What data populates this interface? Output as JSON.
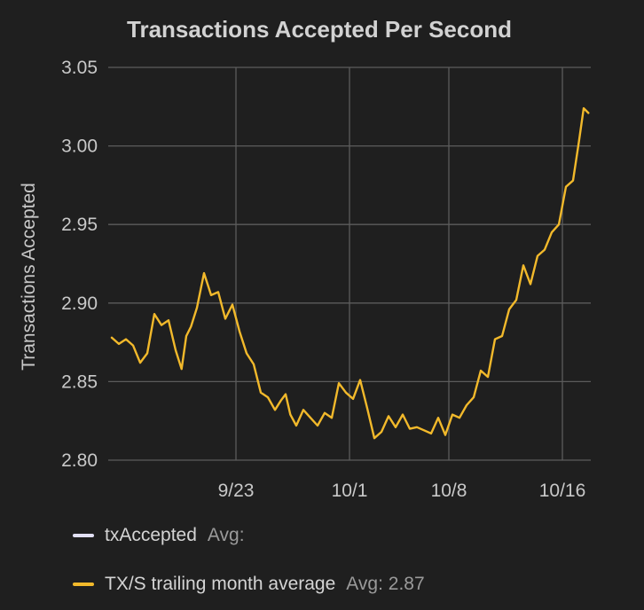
{
  "chart_data": {
    "type": "line",
    "title": "Transactions Accepted Per Second",
    "ylabel": "Transactions Accepted",
    "xlabel": "",
    "ylim": [
      2.8,
      3.05
    ],
    "yticks": [
      2.8,
      2.85,
      2.9,
      2.95,
      3.0,
      3.05
    ],
    "ytick_labels": [
      "2.80",
      "2.85",
      "2.90",
      "2.95",
      "3.00",
      "3.05"
    ],
    "xlim": [
      "2023-09-14",
      "2023-10-18"
    ],
    "xticks": [
      "2023-09-23",
      "2023-10-01",
      "2023-10-08",
      "2023-10-16"
    ],
    "xtick_labels": [
      "9/23",
      "10/1",
      "10/8",
      "10/16"
    ],
    "grid": true,
    "legend_position": "bottom-left",
    "series": [
      {
        "name": "txAccepted",
        "color": "#e2e0f5",
        "stat_label": "Avg:",
        "x": [],
        "y": []
      },
      {
        "name": "TX/S trailing month average",
        "color": "#f2b92b",
        "stat_label": "Avg: 2.87",
        "x": [
          "2023-09-14",
          "2023-09-14",
          "2023-09-15",
          "2023-09-15",
          "2023-09-16",
          "2023-09-16",
          "2023-09-17",
          "2023-09-17",
          "2023-09-18",
          "2023-09-18",
          "2023-09-19",
          "2023-09-19",
          "2023-09-19",
          "2023-09-20",
          "2023-09-20",
          "2023-09-21",
          "2023-09-21",
          "2023-09-22",
          "2023-09-22",
          "2023-09-23",
          "2023-09-23",
          "2023-09-24",
          "2023-09-24",
          "2023-09-25",
          "2023-09-25",
          "2023-09-26",
          "2023-09-26",
          "2023-09-26",
          "2023-09-27",
          "2023-09-27",
          "2023-09-28",
          "2023-09-28",
          "2023-09-29",
          "2023-09-29",
          "2023-09-30",
          "2023-09-30",
          "2023-10-01",
          "2023-10-01",
          "2023-10-02",
          "2023-10-02",
          "2023-10-03",
          "2023-10-03",
          "2023-10-04",
          "2023-10-04",
          "2023-10-05",
          "2023-10-05",
          "2023-10-06",
          "2023-10-06",
          "2023-10-07",
          "2023-10-07",
          "2023-10-08",
          "2023-10-08",
          "2023-10-09",
          "2023-10-09",
          "2023-10-10",
          "2023-10-10",
          "2023-10-11",
          "2023-10-11",
          "2023-10-12",
          "2023-10-12",
          "2023-10-13",
          "2023-10-13",
          "2023-10-14",
          "2023-10-14",
          "2023-10-15",
          "2023-10-15",
          "2023-10-16",
          "2023-10-16",
          "2023-10-17",
          "2023-10-17",
          "2023-10-17"
        ],
        "y": [
          2.878,
          2.874,
          2.877,
          2.873,
          2.862,
          2.868,
          2.893,
          2.886,
          2.889,
          2.87,
          2.858,
          2.879,
          2.885,
          2.897,
          2.919,
          2.905,
          2.907,
          2.89,
          2.899,
          2.882,
          2.868,
          2.861,
          2.843,
          2.84,
          2.832,
          2.838,
          2.842,
          2.829,
          2.822,
          2.832,
          2.827,
          2.822,
          2.83,
          2.827,
          2.849,
          2.843,
          2.839,
          2.851,
          2.833,
          2.814,
          2.818,
          2.828,
          2.821,
          2.829,
          2.82,
          2.821,
          2.819,
          2.817,
          2.827,
          2.816,
          2.829,
          2.827,
          2.835,
          2.84,
          2.857,
          2.853,
          2.877,
          2.879,
          2.896,
          2.902,
          2.924,
          2.912,
          2.93,
          2.934,
          2.945,
          2.95,
          2.974,
          2.978,
          3.003,
          3.024,
          3.021
        ]
      }
    ]
  }
}
